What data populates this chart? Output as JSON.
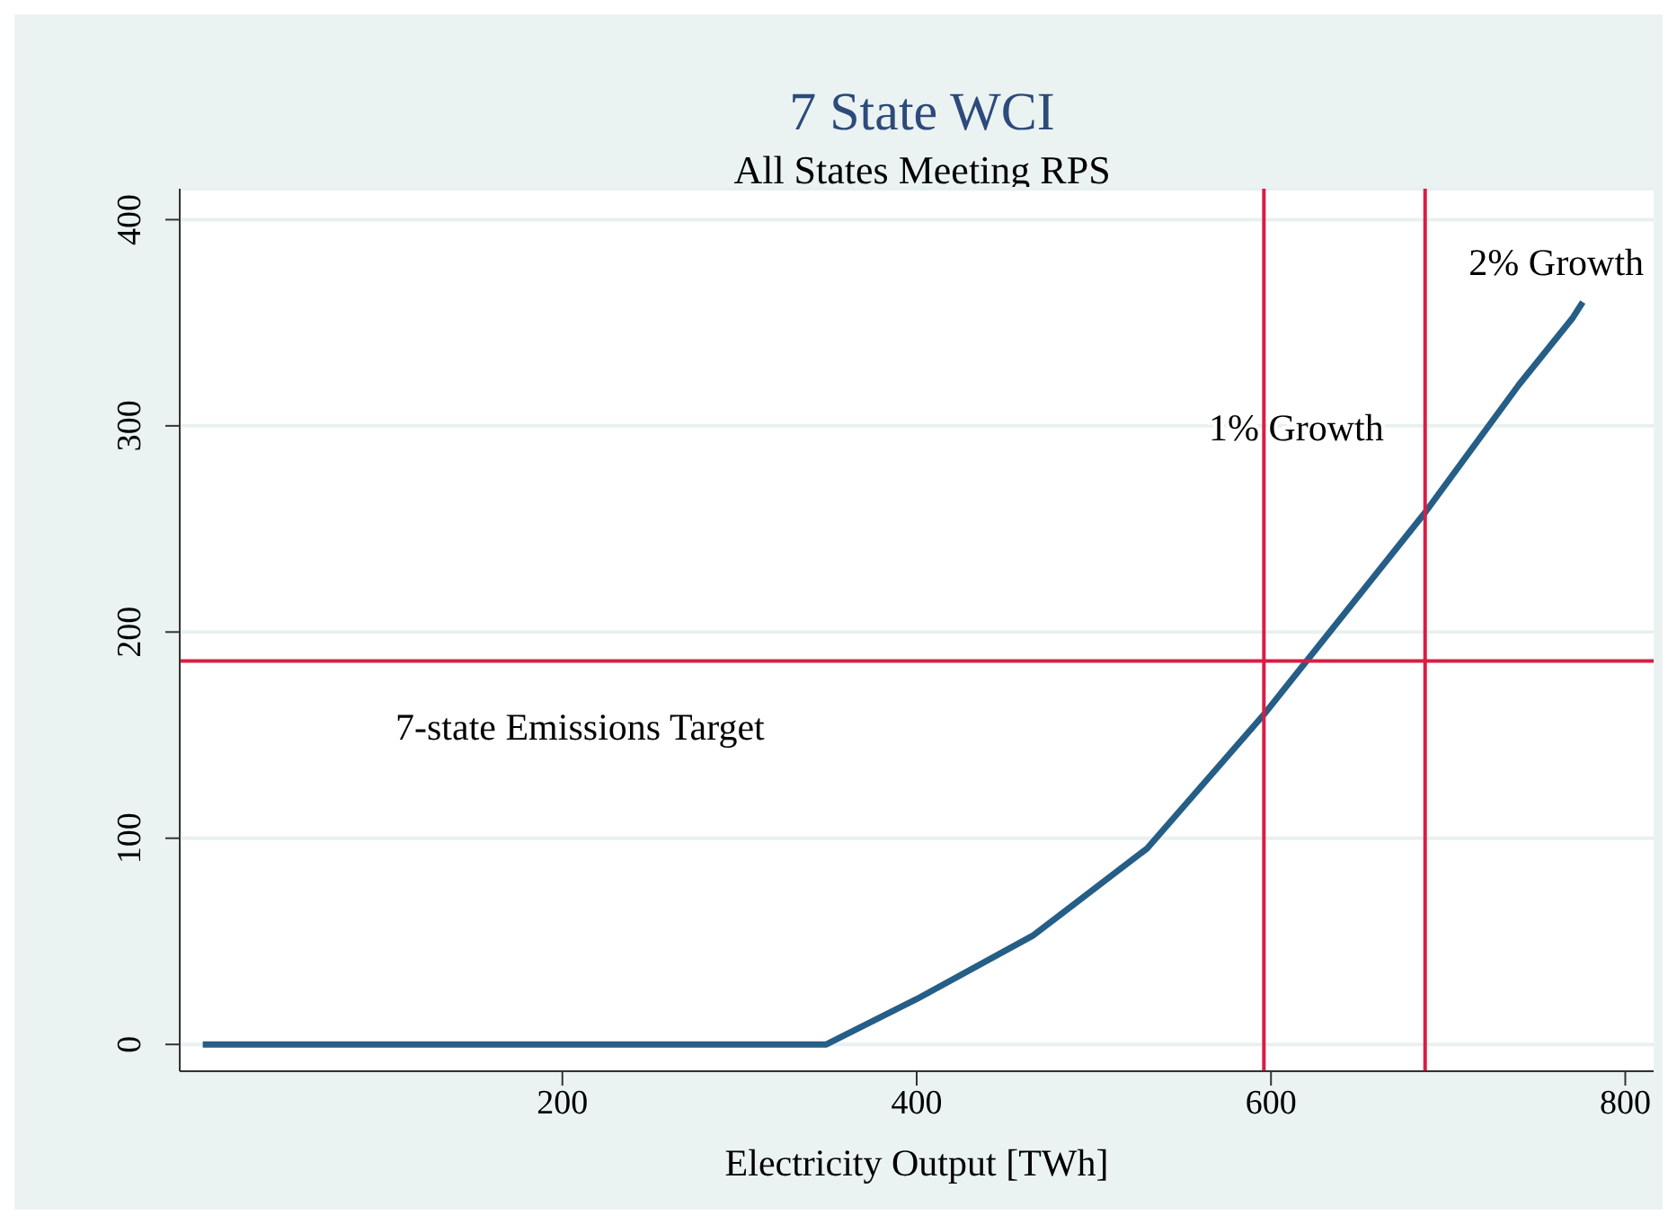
{
  "chart_data": {
    "type": "line",
    "title": "7 State WCI",
    "subtitle": "All States Meeting RPS",
    "xlabel": "Electricity Output [TWh]",
    "x": [
      -3,
      100,
      200,
      300,
      349,
      400,
      466,
      530,
      596,
      687,
      740,
      770,
      776
    ],
    "series": [
      {
        "color": "#255e86",
        "values": [
          0,
          0,
          0,
          0,
          0,
          22,
          53,
          95,
          160,
          258,
          320,
          352,
          360
        ]
      }
    ],
    "xlim": [
      -16,
      816
    ],
    "ylim": [
      -13,
      415
    ],
    "xticks": [
      200,
      400,
      600,
      800
    ],
    "yticks": [
      0,
      100,
      200,
      300,
      400
    ],
    "grid": "y",
    "legend": false,
    "marker": "none",
    "line_style": "solid",
    "ref_lines": [
      {
        "axis": "x",
        "value": 596,
        "color": "#d81e44",
        "label": "1% Growth"
      },
      {
        "axis": "x",
        "value": 687,
        "color": "#d81e44",
        "label": "2% Growth"
      },
      {
        "axis": "y",
        "value": 186,
        "color": "#d81e44",
        "label": "7-state Emissions Target"
      }
    ]
  }
}
